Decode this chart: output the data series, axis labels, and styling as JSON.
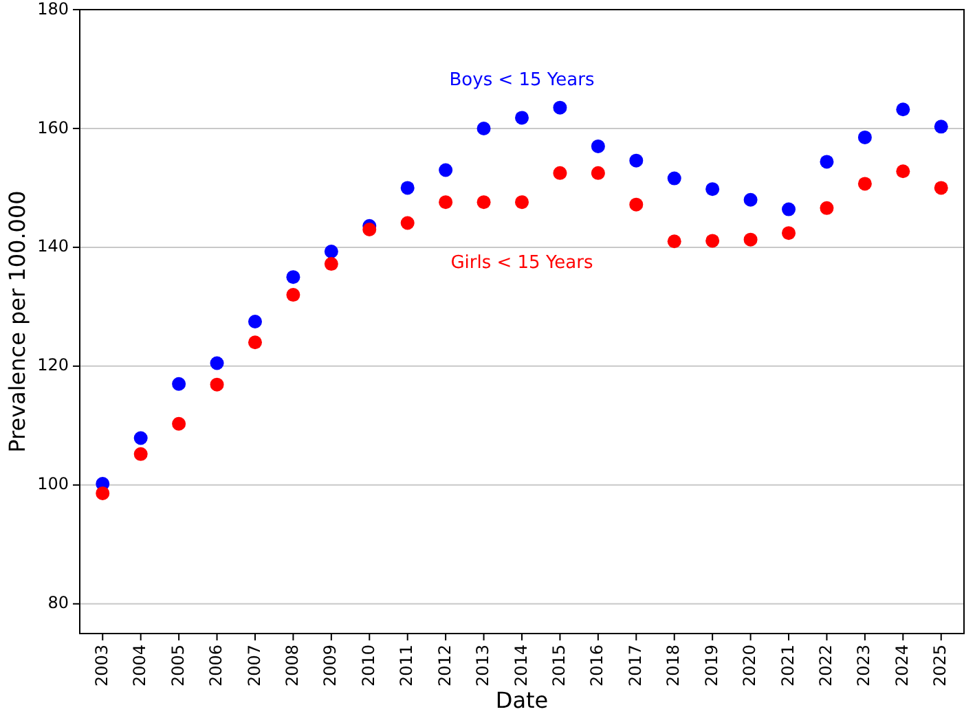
{
  "chart_data": {
    "type": "scatter",
    "xlabel": "Date",
    "ylabel": "Prevalence per 100.000",
    "categories": [
      "2003",
      "2004",
      "2005",
      "2006",
      "2007",
      "2008",
      "2009",
      "2010",
      "2011",
      "2012",
      "2013",
      "2014",
      "2015",
      "2016",
      "2017",
      "2018",
      "2019",
      "2020",
      "2021",
      "2022",
      "2023",
      "2024",
      "2025"
    ],
    "series": [
      {
        "name": "Boys < 15 Years",
        "color": "#0000ff",
        "values": [
          100.2,
          107.9,
          117,
          120.5,
          127.5,
          135,
          139.3,
          143.6,
          150,
          153,
          160,
          161.8,
          163.5,
          157,
          154.6,
          151.6,
          149.8,
          148,
          146.4,
          154.4,
          158.5,
          163.2,
          160.3
        ]
      },
      {
        "name": "Girls < 15 Years",
        "color": "#ff0000",
        "values": [
          98.6,
          105.2,
          110.3,
          116.9,
          124,
          132,
          137.2,
          143,
          144.1,
          147.6,
          147.6,
          147.6,
          152.5,
          152.5,
          147.2,
          141,
          141.1,
          141.3,
          142.4,
          146.6,
          150.7,
          152.8,
          150
        ]
      }
    ],
    "ylim": [
      75,
      180
    ],
    "yticks": [
      80,
      100,
      120,
      140,
      160,
      180
    ],
    "grid": "y",
    "marker": "circle"
  }
}
